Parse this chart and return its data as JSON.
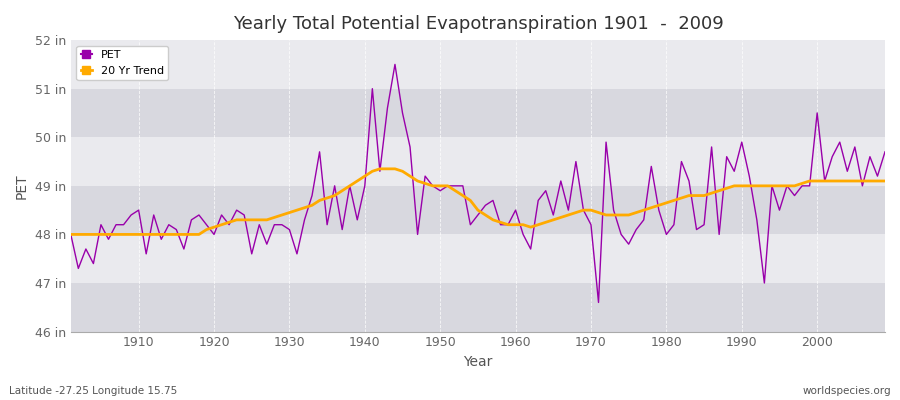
{
  "title": "Yearly Total Potential Evapotranspiration 1901  -  2009",
  "ylabel": "PET",
  "xlabel": "Year",
  "footnote_left": "Latitude -27.25 Longitude 15.75",
  "footnote_right": "worldspecies.org",
  "ylim": [
    46,
    52
  ],
  "ytick_labels": [
    "46 in",
    "47 in",
    "48 in",
    "49 in",
    "50 in",
    "51 in",
    "52 in"
  ],
  "ytick_values": [
    46,
    47,
    48,
    49,
    50,
    51,
    52
  ],
  "xlim": [
    1901,
    2009
  ],
  "xtick_values": [
    1910,
    1920,
    1930,
    1940,
    1950,
    1960,
    1970,
    1980,
    1990,
    2000
  ],
  "pet_color": "#9900aa",
  "trend_color": "#ffaa00",
  "fig_bg_color": "#ffffff",
  "plot_bg_color_light": "#e8e8ec",
  "plot_bg_color_dark": "#d8d8e0",
  "band_color_light": "#eaeaee",
  "band_color_dark": "#d8d8df",
  "pet_data": {
    "years": [
      1901,
      1902,
      1903,
      1904,
      1905,
      1906,
      1907,
      1908,
      1909,
      1910,
      1911,
      1912,
      1913,
      1914,
      1915,
      1916,
      1917,
      1918,
      1919,
      1920,
      1921,
      1922,
      1923,
      1924,
      1925,
      1926,
      1927,
      1928,
      1929,
      1930,
      1931,
      1932,
      1933,
      1934,
      1935,
      1936,
      1937,
      1938,
      1939,
      1940,
      1941,
      1942,
      1943,
      1944,
      1945,
      1946,
      1947,
      1948,
      1949,
      1950,
      1951,
      1952,
      1953,
      1954,
      1955,
      1956,
      1957,
      1958,
      1959,
      1960,
      1961,
      1962,
      1963,
      1964,
      1965,
      1966,
      1967,
      1968,
      1969,
      1970,
      1971,
      1972,
      1973,
      1974,
      1975,
      1976,
      1977,
      1978,
      1979,
      1980,
      1981,
      1982,
      1983,
      1984,
      1985,
      1986,
      1987,
      1988,
      1989,
      1990,
      1991,
      1992,
      1993,
      1994,
      1995,
      1996,
      1997,
      1998,
      1999,
      2000,
      2001,
      2002,
      2003,
      2004,
      2005,
      2006,
      2007,
      2008,
      2009
    ],
    "values": [
      48.0,
      47.3,
      47.7,
      47.4,
      48.2,
      47.9,
      48.2,
      48.2,
      48.4,
      48.5,
      47.6,
      48.4,
      47.9,
      48.2,
      48.1,
      47.7,
      48.3,
      48.4,
      48.2,
      48.0,
      48.4,
      48.2,
      48.5,
      48.4,
      47.6,
      48.2,
      47.8,
      48.2,
      48.2,
      48.1,
      47.6,
      48.3,
      48.8,
      49.7,
      48.2,
      49.0,
      48.1,
      49.0,
      48.3,
      49.0,
      51.0,
      49.3,
      50.6,
      51.5,
      50.5,
      49.8,
      48.0,
      49.2,
      49.0,
      48.9,
      49.0,
      49.0,
      49.0,
      48.2,
      48.4,
      48.6,
      48.7,
      48.2,
      48.2,
      48.5,
      48.0,
      47.7,
      48.7,
      48.9,
      48.4,
      49.1,
      48.5,
      49.5,
      48.5,
      48.2,
      46.6,
      49.9,
      48.5,
      48.0,
      47.8,
      48.1,
      48.3,
      49.4,
      48.5,
      48.0,
      48.2,
      49.5,
      49.1,
      48.1,
      48.2,
      49.8,
      48.0,
      49.6,
      49.3,
      49.9,
      49.2,
      48.3,
      47.0,
      49.0,
      48.5,
      49.0,
      48.8,
      49.0,
      49.0,
      50.5,
      49.1,
      49.6,
      49.9,
      49.3,
      49.8,
      49.0,
      49.6,
      49.2,
      49.7
    ]
  },
  "trend_data": {
    "years": [
      1901,
      1902,
      1903,
      1904,
      1905,
      1906,
      1907,
      1908,
      1909,
      1910,
      1911,
      1912,
      1913,
      1914,
      1915,
      1916,
      1917,
      1918,
      1919,
      1920,
      1921,
      1922,
      1923,
      1924,
      1925,
      1926,
      1927,
      1928,
      1929,
      1930,
      1931,
      1932,
      1933,
      1934,
      1935,
      1936,
      1937,
      1938,
      1939,
      1940,
      1941,
      1942,
      1943,
      1944,
      1945,
      1946,
      1947,
      1948,
      1949,
      1950,
      1951,
      1952,
      1953,
      1954,
      1955,
      1956,
      1957,
      1958,
      1959,
      1960,
      1961,
      1962,
      1963,
      1964,
      1965,
      1966,
      1967,
      1968,
      1969,
      1970,
      1971,
      1972,
      1973,
      1974,
      1975,
      1976,
      1977,
      1978,
      1979,
      1980,
      1981,
      1982,
      1983,
      1984,
      1985,
      1986,
      1987,
      1988,
      1989,
      1990,
      1991,
      1992,
      1993,
      1994,
      1995,
      1996,
      1997,
      1998,
      1999,
      2000,
      2001,
      2002,
      2003,
      2004,
      2005,
      2006,
      2007,
      2008,
      2009
    ],
    "values": [
      48.0,
      48.0,
      48.0,
      48.0,
      48.0,
      48.0,
      48.0,
      48.0,
      48.0,
      48.0,
      48.0,
      48.0,
      48.0,
      48.0,
      48.0,
      48.0,
      48.0,
      48.0,
      48.1,
      48.15,
      48.2,
      48.25,
      48.3,
      48.3,
      48.3,
      48.3,
      48.3,
      48.35,
      48.4,
      48.45,
      48.5,
      48.55,
      48.6,
      48.7,
      48.75,
      48.8,
      48.9,
      49.0,
      49.1,
      49.2,
      49.3,
      49.35,
      49.35,
      49.35,
      49.3,
      49.2,
      49.1,
      49.05,
      49.0,
      49.0,
      49.0,
      48.9,
      48.8,
      48.7,
      48.5,
      48.4,
      48.3,
      48.25,
      48.2,
      48.2,
      48.2,
      48.15,
      48.2,
      48.25,
      48.3,
      48.35,
      48.4,
      48.45,
      48.5,
      48.5,
      48.45,
      48.4,
      48.4,
      48.4,
      48.4,
      48.45,
      48.5,
      48.55,
      48.6,
      48.65,
      48.7,
      48.75,
      48.8,
      48.8,
      48.8,
      48.85,
      48.9,
      48.95,
      49.0,
      49.0,
      49.0,
      49.0,
      49.0,
      49.0,
      49.0,
      49.0,
      49.0,
      49.05,
      49.1,
      49.1,
      49.1,
      49.1,
      49.1,
      49.1,
      49.1,
      49.1,
      49.1,
      49.1,
      49.1
    ]
  }
}
